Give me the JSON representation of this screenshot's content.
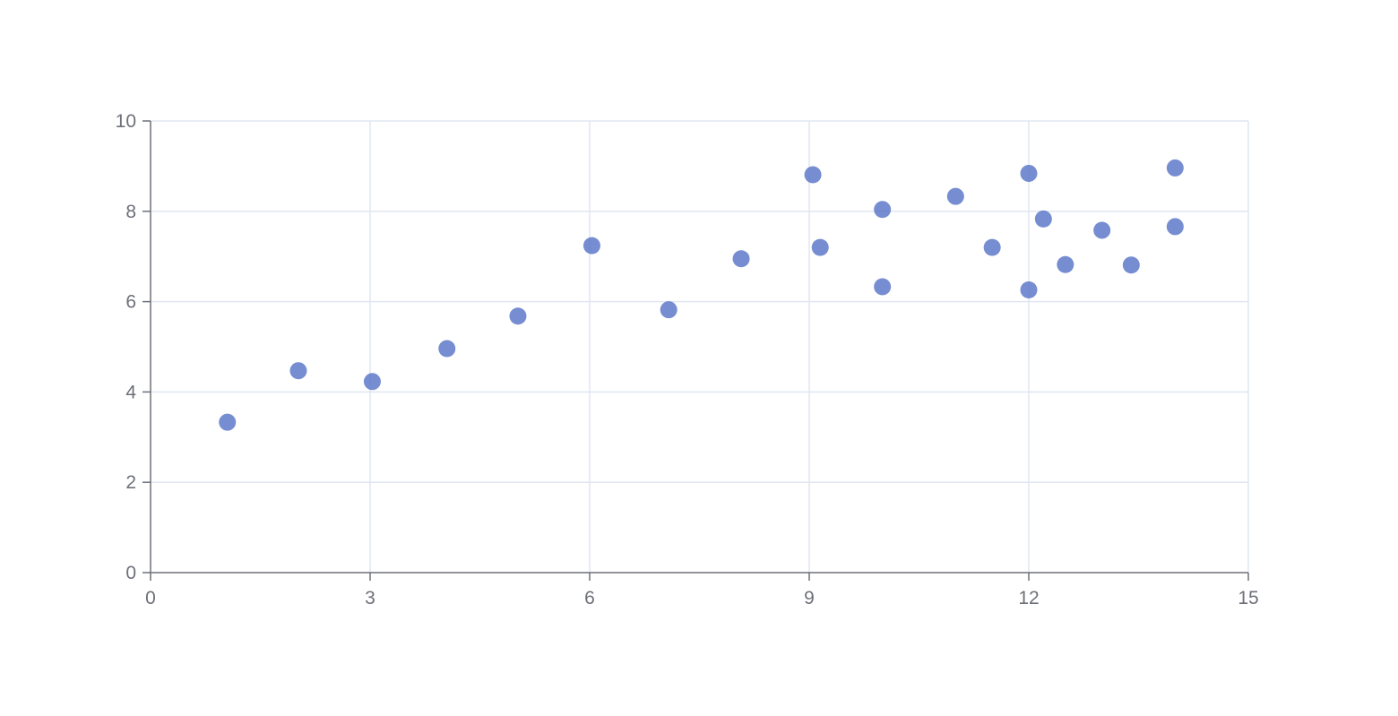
{
  "chart_data": {
    "type": "scatter",
    "title": "",
    "xlabel": "",
    "ylabel": "",
    "xlim": [
      0,
      15
    ],
    "ylim": [
      0,
      10
    ],
    "x_ticks": [
      "0",
      "3",
      "6",
      "9",
      "12",
      "15"
    ],
    "y_ticks": [
      "0",
      "2",
      "4",
      "6",
      "8",
      "10"
    ],
    "grid": true,
    "legend": "none",
    "colors": {
      "point": "#5470c6",
      "grid": "#e0e6f1",
      "axis": "#6e7079"
    },
    "series": [
      {
        "points": [
          [
            10.0,
            8.04
          ],
          [
            8.07,
            6.95
          ],
          [
            13.0,
            7.58
          ],
          [
            9.05,
            8.81
          ],
          [
            11.0,
            8.33
          ],
          [
            14.0,
            7.66
          ],
          [
            13.4,
            6.81
          ],
          [
            10.0,
            6.33
          ],
          [
            14.0,
            8.96
          ],
          [
            12.5,
            6.82
          ],
          [
            9.15,
            7.2
          ],
          [
            11.5,
            7.2
          ],
          [
            3.03,
            4.23
          ],
          [
            12.2,
            7.83
          ],
          [
            2.02,
            4.47
          ],
          [
            1.05,
            3.33
          ],
          [
            4.05,
            4.96
          ],
          [
            6.03,
            7.24
          ],
          [
            12.0,
            6.26
          ],
          [
            12.0,
            8.84
          ],
          [
            7.08,
            5.82
          ],
          [
            5.02,
            5.68
          ]
        ]
      }
    ]
  }
}
